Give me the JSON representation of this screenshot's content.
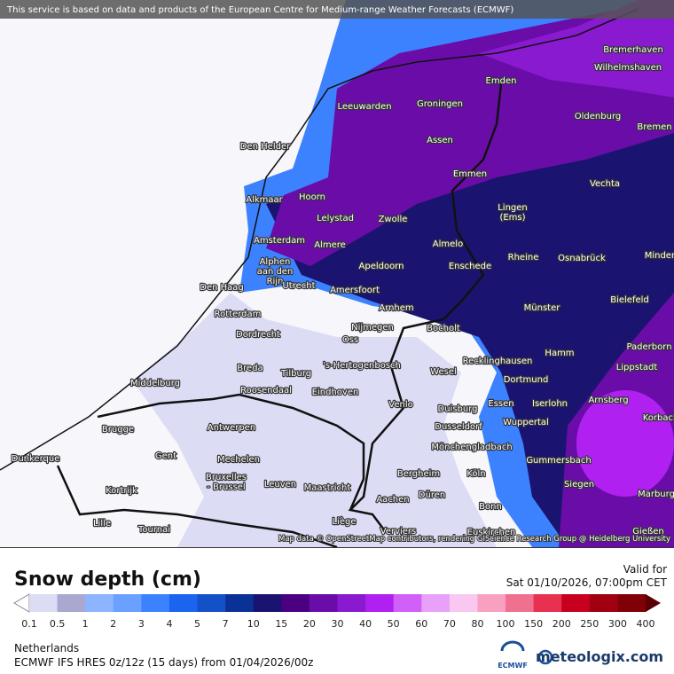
{
  "header": {
    "notice": "This service is based on data and products of the European Centre for Medium-range Weather Forecasts (ECMWF)"
  },
  "map": {
    "cities": [
      "Bremerhaven",
      "Wilhelmshaven",
      "Emden",
      "Leeuwarden",
      "Groningen",
      "Oldenburg",
      "Bremen",
      "Den Helder",
      "Assen",
      "Emmen",
      "Vechta",
      "Alkmaar",
      "Hoorn",
      "Lelystad",
      "Zwolle",
      [
        "Lingen",
        "(Ems)"
      ],
      "Amsterdam",
      "Almere",
      "Almelo",
      "Rheine",
      "Osnabrück",
      "Minden",
      [
        "Alphen",
        "aan den",
        "Rijn"
      ],
      "Apeldoorn",
      "Enschede",
      "Utrecht",
      "Amersfoort",
      "Den Haag",
      "Bielefeld",
      "Arnhem",
      "Münster",
      "Rotterdam",
      "Nijmegen",
      "Bocholt",
      "Dordrecht",
      "Oss",
      "Paderborn",
      "Hamm",
      "Recklinghausen",
      "Breda",
      "Tilburg",
      "'s-Hertogenbosch",
      "Wesel",
      "Lippstadt",
      "Middelburg",
      "Roosendaal",
      "Eindhoven",
      "Dortmund",
      "Arnsberg",
      "Essen",
      "Iserlohn",
      "Venlo",
      "Duisburg",
      "Korbach",
      "Wuppertal",
      "Brugge",
      "Antwerpen",
      "Dusseldorf",
      "Mönchengladbach",
      "Gent",
      "Mechelen",
      "Gummersbach",
      "Dunkerque",
      [
        "Bruxelles",
        "- Brussel"
      ],
      "Leuven",
      "Bergheim",
      "Köln",
      "Maastricht",
      "Siegen",
      "Kortrijk",
      "Düren",
      "Aachen",
      "Marburg",
      "Gießen",
      "Bonn",
      "Lille",
      "Tournai",
      "Liège",
      "Verviers",
      "Euskirchen"
    ],
    "attribution": "Map data © OpenStreetMap contributors, rendering GIScience Research Group @ Heidelberg University"
  },
  "legend": {
    "title": "Snow depth (cm)",
    "valid_label": "Valid for",
    "valid_time": "Sat 01/10/2026, 07:00pm CET",
    "levels": [
      0.1,
      0.5,
      1,
      2,
      3,
      4,
      5,
      7,
      10,
      15,
      20,
      30,
      40,
      50,
      60,
      70,
      80,
      100,
      150,
      200,
      250,
      300,
      400
    ],
    "colors": [
      "#ffffff",
      "#dcdcf5",
      "#a8a8d0",
      "#8cb4ff",
      "#6aa0ff",
      "#3c82ff",
      "#1a64f0",
      "#1450c8",
      "#0a3296",
      "#1a1470",
      "#4b0082",
      "#6a0da8",
      "#8a1ad0",
      "#b020f0",
      "#d060f8",
      "#e8a0f8",
      "#f8c8f0",
      "#f8a0c0",
      "#f07090",
      "#e83050",
      "#c80020",
      "#a00010",
      "#800008",
      "#5a0005"
    ]
  },
  "footer": {
    "region": "Netherlands",
    "model": "ECMWF IFS HRES 0z/12z (15 days) from 01/04/2026/00z",
    "ecmwf_logo": "ECMWF",
    "brand": "meteologix.com"
  }
}
